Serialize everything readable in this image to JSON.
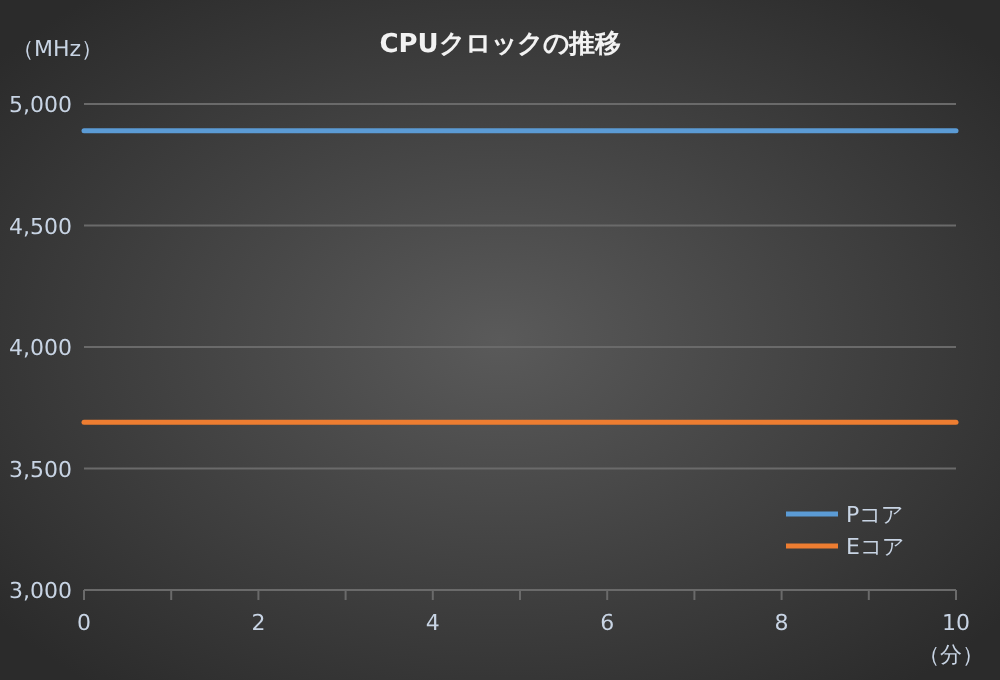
{
  "chart_data": {
    "type": "line",
    "title": "CPUクロックの推移",
    "ylabel": "（MHz）",
    "xlabel": "（分）",
    "x": [
      0,
      10
    ],
    "series": [
      {
        "name": "Pコア",
        "color": "#5b9bd5",
        "values": [
          4890,
          4890
        ]
      },
      {
        "name": "Eコア",
        "color": "#ed7d31",
        "values": [
          3690,
          3690
        ]
      }
    ],
    "xlim": [
      0,
      10
    ],
    "ylim": [
      3000,
      5000
    ],
    "xticks": [
      0,
      {
        "value": 1,
        "label": null
      },
      2,
      {
        "value": 3,
        "label": null
      },
      4,
      {
        "value": 5,
        "label": null
      },
      6,
      {
        "value": 7,
        "label": null
      },
      8,
      {
        "value": 9,
        "label": null
      },
      10
    ],
    "yticks": [
      {
        "value": 3000,
        "label": "3,000"
      },
      {
        "value": 3500,
        "label": "3,500"
      },
      {
        "value": 4000,
        "label": "4,000"
      },
      {
        "value": 4500,
        "label": "4,500"
      },
      {
        "value": 5000,
        "label": "5,000"
      }
    ],
    "grid": "y",
    "legend": "bottom right",
    "marker": "none",
    "line_style": "solid"
  }
}
